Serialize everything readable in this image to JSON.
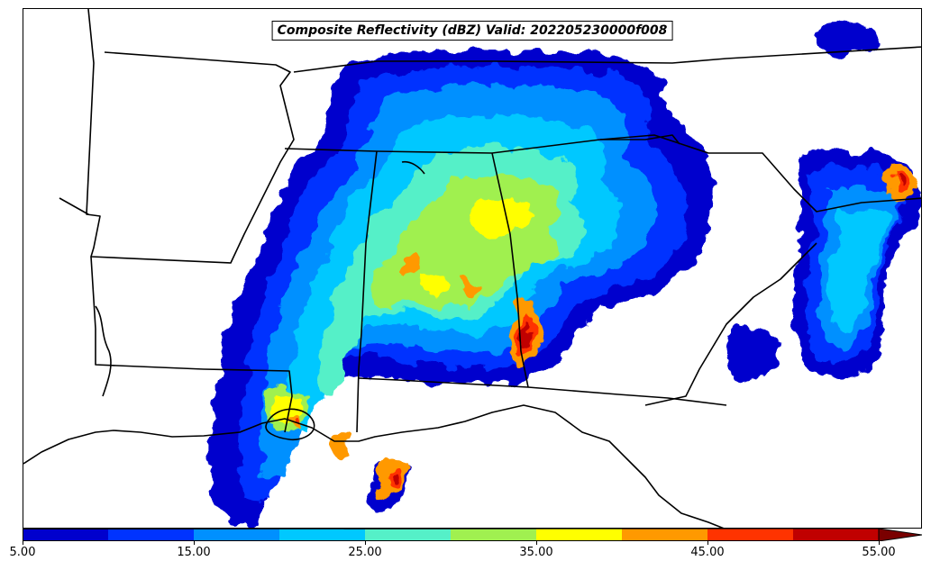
{
  "map": {
    "title": "Composite Reflectivity (dBZ) Valid: 202205230000f008"
  },
  "colorbar": {
    "levels": [
      5,
      10,
      15,
      20,
      25,
      30,
      35,
      40,
      45,
      50,
      55
    ],
    "colors": [
      "#0000cd",
      "#0033ff",
      "#0090ff",
      "#00c8ff",
      "#55f0c8",
      "#a0f050",
      "#ffff00",
      "#ff9900",
      "#ff3300",
      "#c00000",
      "#7a0000"
    ],
    "extend": "max",
    "tick_labels": [
      "5.00",
      "15.00",
      "25.00",
      "35.00",
      "45.00",
      "55.00"
    ],
    "tick_values": [
      5,
      15,
      25,
      35,
      45,
      55
    ]
  }
}
